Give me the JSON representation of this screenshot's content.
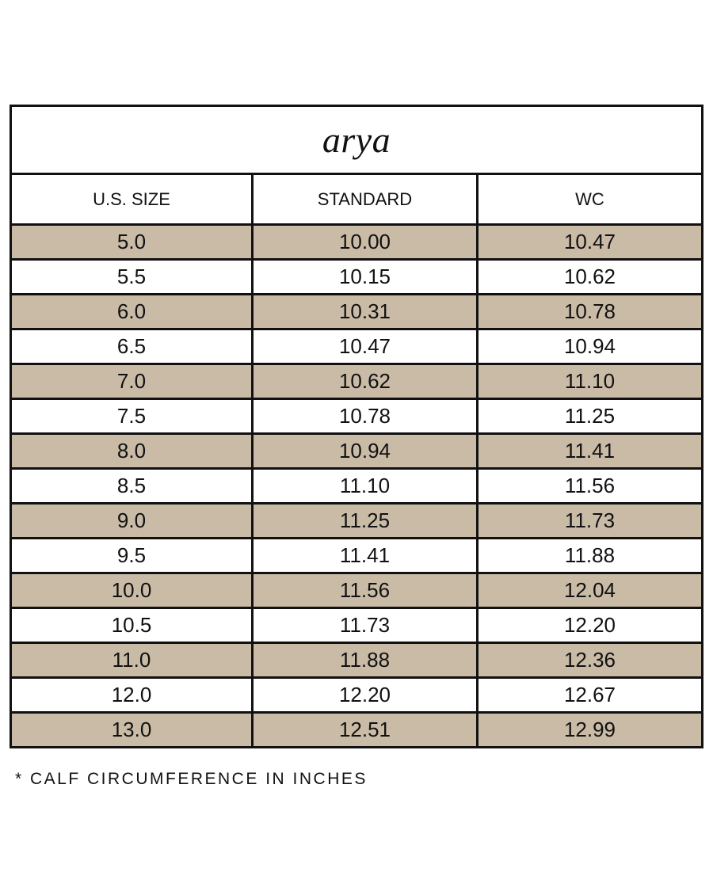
{
  "title": "arya",
  "colors": {
    "shade": "#c9bba6",
    "border": "#111111"
  },
  "headers": [
    "U.S. SIZE",
    "STANDARD",
    "WC"
  ],
  "rows": [
    [
      "5.0",
      "10.00",
      "10.47"
    ],
    [
      "5.5",
      "10.15",
      "10.62"
    ],
    [
      "6.0",
      "10.31",
      "10.78"
    ],
    [
      "6.5",
      "10.47",
      "10.94"
    ],
    [
      "7.0",
      "10.62",
      "11.10"
    ],
    [
      "7.5",
      "10.78",
      "11.25"
    ],
    [
      "8.0",
      "10.94",
      "11.41"
    ],
    [
      "8.5",
      "11.10",
      "11.56"
    ],
    [
      "9.0",
      "11.25",
      "11.73"
    ],
    [
      "9.5",
      "11.41",
      "11.88"
    ],
    [
      "10.0",
      "11.56",
      "12.04"
    ],
    [
      "10.5",
      "11.73",
      "12.20"
    ],
    [
      "11.0",
      "11.88",
      "12.36"
    ],
    [
      "12.0",
      "12.20",
      "12.67"
    ],
    [
      "13.0",
      "12.51",
      "12.99"
    ]
  ],
  "footnote": "* CALF CIRCUMFERENCE IN INCHES"
}
